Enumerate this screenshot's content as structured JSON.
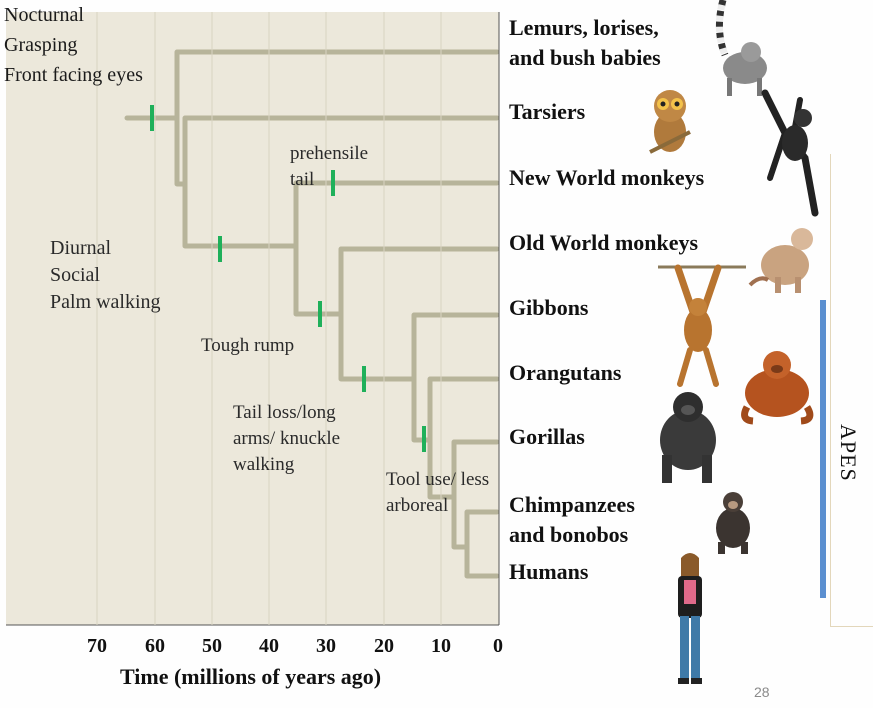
{
  "notes": {
    "root": [
      "Nocturnal",
      "Grasping",
      "Front facing eyes"
    ],
    "anthropoid": [
      "Diurnal",
      "Social",
      "Palm walking"
    ],
    "prehensile": [
      "prehensile",
      "tail"
    ],
    "rump": "Tough rump",
    "apes": [
      "Tail loss/long",
      "arms/ knuckle",
      "walking"
    ],
    "tool": [
      "Tool use/ less",
      "arboreal"
    ]
  },
  "taxa": [
    [
      "Lemurs, lorises,",
      "and bush babies"
    ],
    [
      "Tarsiers"
    ],
    [
      "New World monkeys"
    ],
    [
      "Old World monkeys"
    ],
    [
      "Gibbons"
    ],
    [
      "Orangutans"
    ],
    [
      "Gorillas"
    ],
    [
      "Chimpanzees",
      "and bonobos"
    ],
    [
      "Humans"
    ]
  ],
  "axis": {
    "ticks": [
      "70",
      "60",
      "50",
      "40",
      "30",
      "20",
      "10",
      "0"
    ],
    "title": "Time (millions of years ago)"
  },
  "group_label": "APES",
  "page_number": "28",
  "colors": {
    "branch": "#b7b49a",
    "trait_mark": "#1fb05a",
    "apes_bar": "#5b8fd0",
    "panel": "#ece8db"
  }
}
